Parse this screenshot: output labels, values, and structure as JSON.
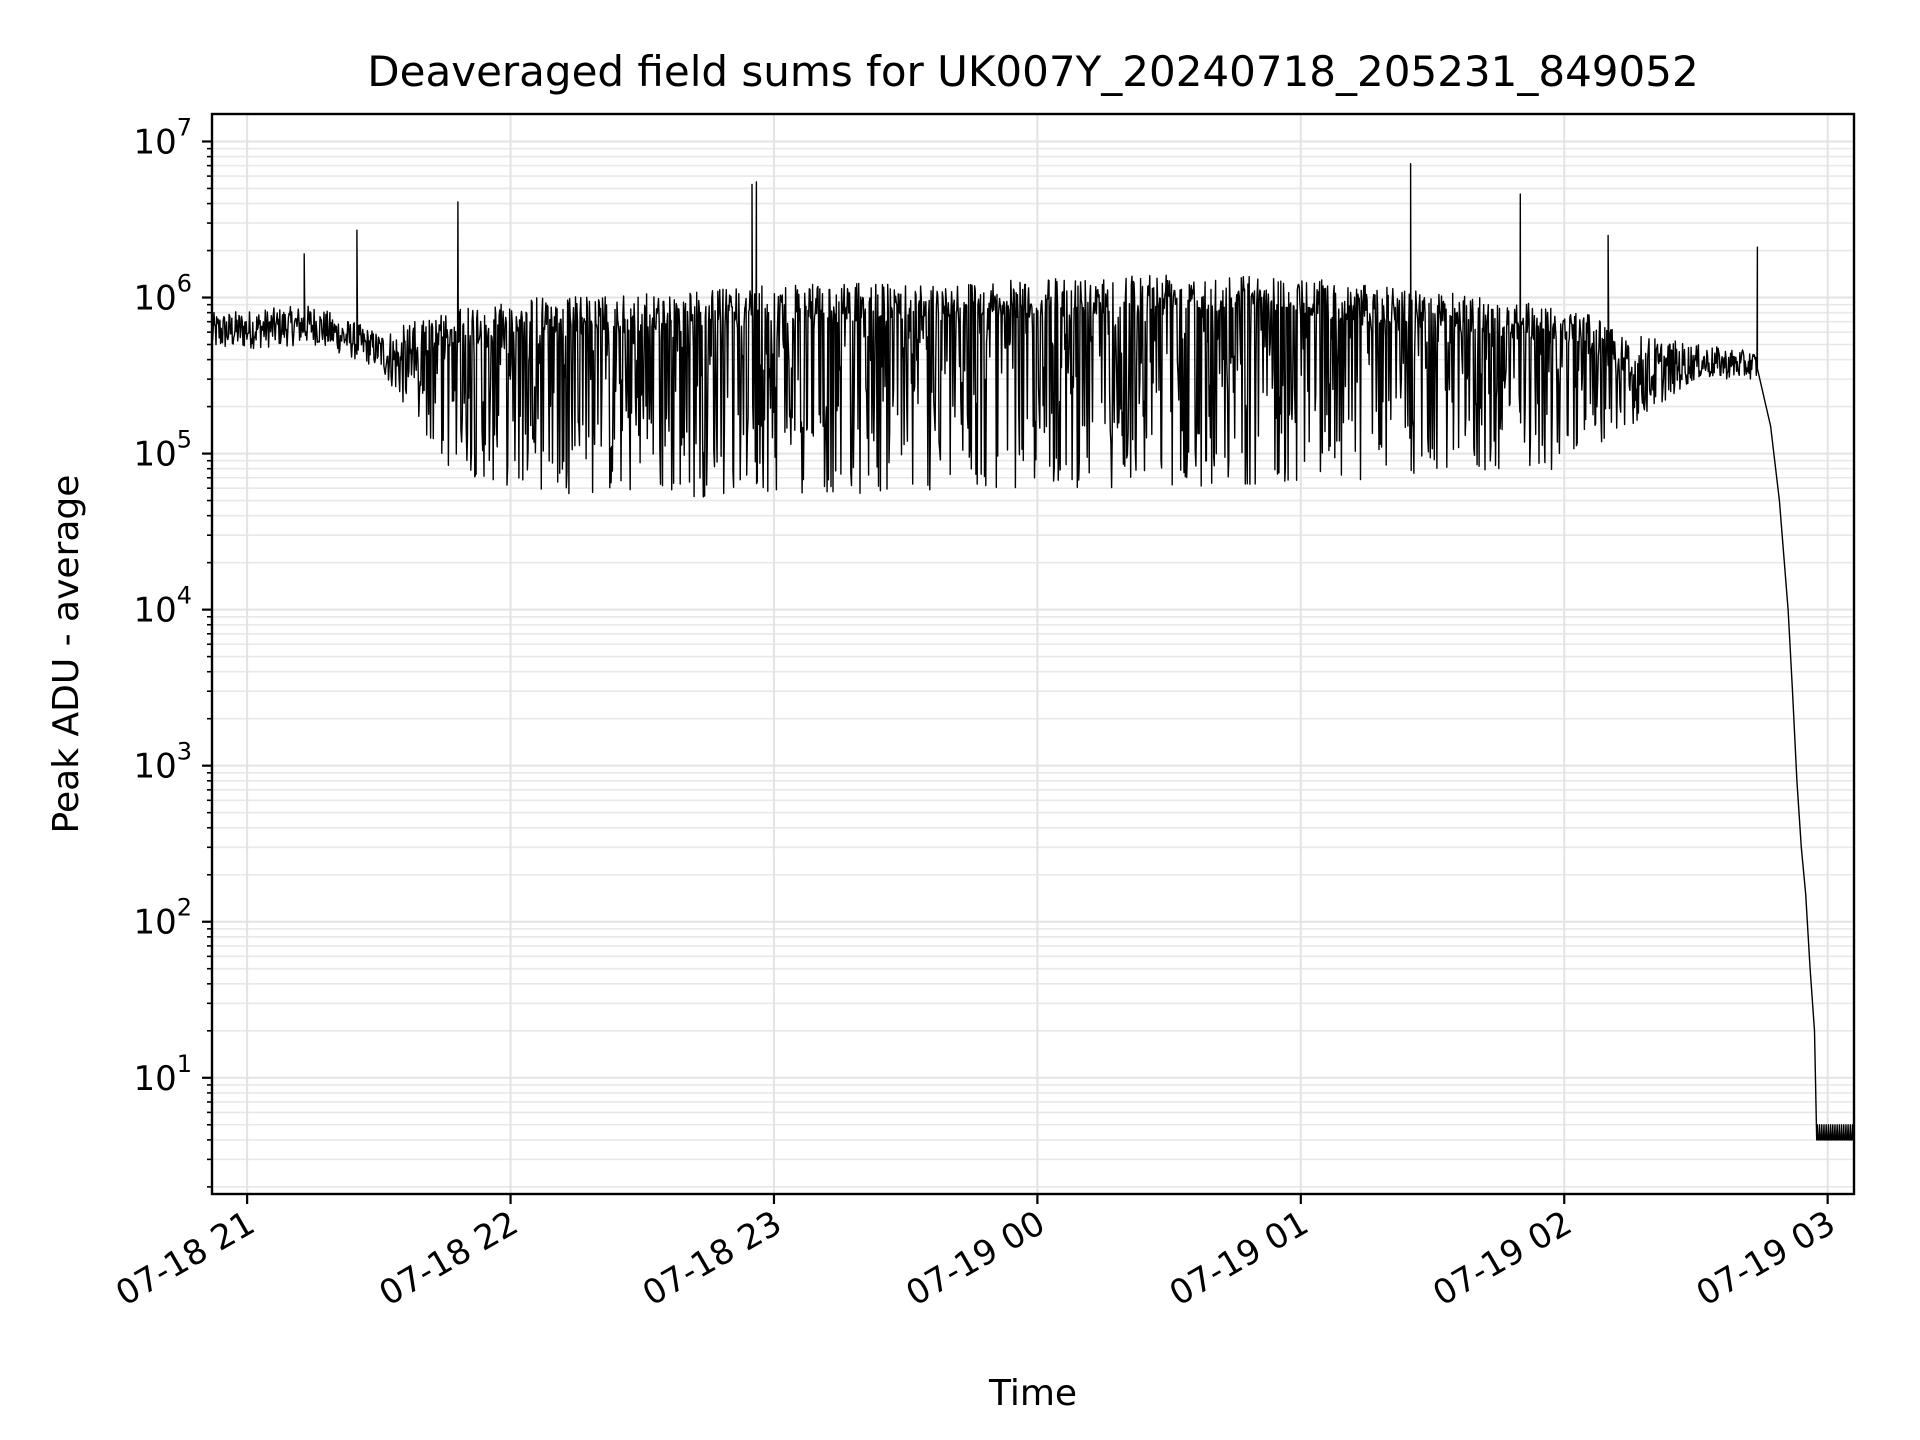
{
  "chart_data": {
    "type": "line",
    "title": "Deaveraged field sums for UK007Y_20240718_205231_849052",
    "xlabel": "Time",
    "ylabel": "Peak ADU - average",
    "yscale": "log",
    "ylim": [
      1.8,
      15000000
    ],
    "xlim": [
      "2024-07-18T20:52",
      "2024-07-19T03:06"
    ],
    "grid": true,
    "x_ticks": [
      {
        "t": "2024-07-18T21:00",
        "label": "07-18 21"
      },
      {
        "t": "2024-07-18T22:00",
        "label": "07-18 22"
      },
      {
        "t": "2024-07-18T23:00",
        "label": "07-18 23"
      },
      {
        "t": "2024-07-19T00:00",
        "label": "07-19 00"
      },
      {
        "t": "2024-07-19T01:00",
        "label": "07-19 01"
      },
      {
        "t": "2024-07-19T02:00",
        "label": "07-19 02"
      },
      {
        "t": "2024-07-19T03:00",
        "label": "07-19 03"
      }
    ],
    "y_ticks": [
      {
        "value": 10,
        "base": "10",
        "exp": "1"
      },
      {
        "value": 100,
        "base": "10",
        "exp": "2"
      },
      {
        "value": 1000,
        "base": "10",
        "exp": "3"
      },
      {
        "value": 10000,
        "base": "10",
        "exp": "4"
      },
      {
        "value": 100000,
        "base": "10",
        "exp": "5"
      },
      {
        "value": 1000000,
        "base": "10",
        "exp": "6"
      },
      {
        "value": 10000000,
        "base": "10",
        "exp": "7"
      }
    ],
    "series": [
      {
        "color": "#000000",
        "envelope": [
          {
            "t": "2024-07-18T20:52",
            "high": 800000,
            "low": 450000
          },
          {
            "t": "2024-07-18T21:15",
            "high": 900000,
            "low": 500000
          },
          {
            "t": "2024-07-18T21:30",
            "high": 600000,
            "low": 350000
          },
          {
            "t": "2024-07-18T21:45",
            "high": 800000,
            "low": 80000
          },
          {
            "t": "2024-07-18T22:00",
            "high": 1000000,
            "low": 60000
          },
          {
            "t": "2024-07-18T22:30",
            "high": 1050000,
            "low": 50000
          },
          {
            "t": "2024-07-18T23:00",
            "high": 1200000,
            "low": 55000
          },
          {
            "t": "2024-07-18T23:30",
            "high": 1250000,
            "low": 55000
          },
          {
            "t": "2024-07-19T00:00",
            "high": 1300000,
            "low": 60000
          },
          {
            "t": "2024-07-19T00:30",
            "high": 1500000,
            "low": 60000
          },
          {
            "t": "2024-07-19T01:00",
            "high": 1350000,
            "low": 65000
          },
          {
            "t": "2024-07-19T01:30",
            "high": 1100000,
            "low": 70000
          },
          {
            "t": "2024-07-19T02:00",
            "high": 900000,
            "low": 80000
          },
          {
            "t": "2024-07-19T02:15",
            "high": 600000,
            "low": 150000
          },
          {
            "t": "2024-07-19T02:30",
            "high": 500000,
            "low": 300000
          },
          {
            "t": "2024-07-19T02:44",
            "high": 450000,
            "low": 300000
          }
        ],
        "decay": [
          {
            "t": "2024-07-19T02:44",
            "y": 350000
          },
          {
            "t": "2024-07-19T02:47",
            "y": 150000
          },
          {
            "t": "2024-07-19T02:49",
            "y": 50000
          },
          {
            "t": "2024-07-19T02:51",
            "y": 10000
          },
          {
            "t": "2024-07-19T02:52",
            "y": 3000
          },
          {
            "t": "2024-07-19T02:53",
            "y": 800
          },
          {
            "t": "2024-07-19T02:54",
            "y": 300
          },
          {
            "t": "2024-07-19T02:55",
            "y": 150
          },
          {
            "t": "2024-07-19T02:56",
            "y": 50
          },
          {
            "t": "2024-07-19T02:57",
            "y": 20
          },
          {
            "t": "2024-07-19T02:57:30",
            "y": 4
          }
        ],
        "floor": {
          "t_start": "2024-07-19T02:57:30",
          "t_end": "2024-07-19T03:06",
          "low": 4,
          "high": 5
        },
        "spikes": [
          {
            "t": "2024-07-18T21:13",
            "y": 1900000
          },
          {
            "t": "2024-07-18T21:25",
            "y": 2700000
          },
          {
            "t": "2024-07-18T21:48",
            "y": 4100000
          },
          {
            "t": "2024-07-18T22:55",
            "y": 5300000
          },
          {
            "t": "2024-07-18T22:56",
            "y": 5500000
          },
          {
            "t": "2024-07-19T01:25",
            "y": 7200000
          },
          {
            "t": "2024-07-19T01:50",
            "y": 4600000
          },
          {
            "t": "2024-07-19T02:10",
            "y": 2500000
          },
          {
            "t": "2024-07-19T02:44",
            "y": 2100000
          }
        ]
      }
    ]
  }
}
